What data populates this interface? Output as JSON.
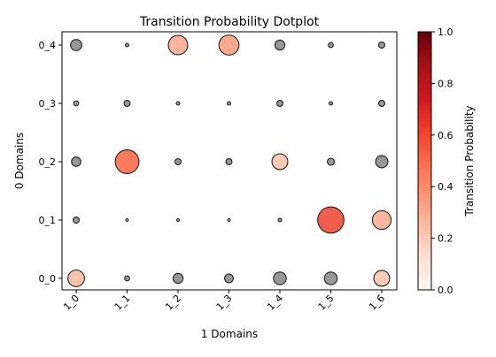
{
  "chart_data": {
    "type": "scatter",
    "title": "Transition Probability Dotplot",
    "xlabel": "1 Domains",
    "ylabel": "0 Domains",
    "x_categories": [
      "1_0",
      "1_1",
      "1_2",
      "1_3",
      "1_4",
      "1_5",
      "1_6"
    ],
    "y_categories": [
      "0_0",
      "0_1",
      "0_2",
      "0_3",
      "0_4"
    ],
    "colorbar": {
      "label": "Transition Probability",
      "range": [
        0.0,
        1.0
      ],
      "ticks": [
        "0.0",
        "0.2",
        "0.4",
        "0.6",
        "0.8",
        "1.0"
      ],
      "colormap": "Reds"
    },
    "grid": false,
    "legend": "none",
    "points": [
      {
        "x": "1_0",
        "y": "0_4",
        "value": 0.1,
        "color": "#8c8c8c"
      },
      {
        "x": "1_1",
        "y": "0_4",
        "value": 0.01,
        "color": "#8c8c8c"
      },
      {
        "x": "1_2",
        "y": "0_4",
        "value": 0.3,
        "color": "#fcab90"
      },
      {
        "x": "1_3",
        "y": "0_4",
        "value": 0.32,
        "color": "#fc9e80"
      },
      {
        "x": "1_4",
        "y": "0_4",
        "value": 0.08,
        "color": "#8c8c8c"
      },
      {
        "x": "1_5",
        "y": "0_4",
        "value": 0.02,
        "color": "#8c8c8c"
      },
      {
        "x": "1_6",
        "y": "0_4",
        "value": 0.03,
        "color": "#8c8c8c"
      },
      {
        "x": "1_0",
        "y": "0_3",
        "value": 0.02,
        "color": "#8c8c8c"
      },
      {
        "x": "1_1",
        "y": "0_3",
        "value": 0.03,
        "color": "#8c8c8c"
      },
      {
        "x": "1_2",
        "y": "0_3",
        "value": 0.01,
        "color": "#8c8c8c"
      },
      {
        "x": "1_3",
        "y": "0_3",
        "value": 0.01,
        "color": "#8c8c8c"
      },
      {
        "x": "1_4",
        "y": "0_3",
        "value": 0.03,
        "color": "#8c8c8c"
      },
      {
        "x": "1_5",
        "y": "0_3",
        "value": 0.01,
        "color": "#8c8c8c"
      },
      {
        "x": "1_6",
        "y": "0_3",
        "value": 0.03,
        "color": "#8c8c8c"
      },
      {
        "x": "1_0",
        "y": "0_2",
        "value": 0.07,
        "color": "#8c8c8c"
      },
      {
        "x": "1_1",
        "y": "0_2",
        "value": 0.45,
        "color": "#fb6c4c"
      },
      {
        "x": "1_2",
        "y": "0_2",
        "value": 0.03,
        "color": "#8c8c8c"
      },
      {
        "x": "1_3",
        "y": "0_2",
        "value": 0.03,
        "color": "#8c8c8c"
      },
      {
        "x": "1_4",
        "y": "0_2",
        "value": 0.2,
        "color": "#fcc5ab"
      },
      {
        "x": "1_5",
        "y": "0_2",
        "value": 0.04,
        "color": "#8c8c8c"
      },
      {
        "x": "1_6",
        "y": "0_2",
        "value": 0.12,
        "color": "#8c8c8c"
      },
      {
        "x": "1_0",
        "y": "0_1",
        "value": 0.03,
        "color": "#8c8c8c"
      },
      {
        "x": "1_1",
        "y": "0_1",
        "value": 0.005,
        "color": "#dddddd"
      },
      {
        "x": "1_2",
        "y": "0_1",
        "value": 0.005,
        "color": "#dddddd"
      },
      {
        "x": "1_3",
        "y": "0_1",
        "value": 0.005,
        "color": "#dddddd"
      },
      {
        "x": "1_4",
        "y": "0_1",
        "value": 0.01,
        "color": "#8c8c8c"
      },
      {
        "x": "1_5",
        "y": "0_1",
        "value": 0.55,
        "color": "#f14c3b"
      },
      {
        "x": "1_6",
        "y": "0_1",
        "value": 0.28,
        "color": "#fcae92"
      },
      {
        "x": "1_0",
        "y": "0_0",
        "value": 0.22,
        "color": "#fcbca2"
      },
      {
        "x": "1_1",
        "y": "0_0",
        "value": 0.02,
        "color": "#8c8c8c"
      },
      {
        "x": "1_2",
        "y": "0_0",
        "value": 0.08,
        "color": "#8c8c8c"
      },
      {
        "x": "1_3",
        "y": "0_0",
        "value": 0.06,
        "color": "#8c8c8c"
      },
      {
        "x": "1_4",
        "y": "0_0",
        "value": 0.13,
        "color": "#8c8c8c"
      },
      {
        "x": "1_5",
        "y": "0_0",
        "value": 0.13,
        "color": "#8c8c8c"
      },
      {
        "x": "1_6",
        "y": "0_0",
        "value": 0.2,
        "color": "#fcc5ab"
      }
    ]
  }
}
